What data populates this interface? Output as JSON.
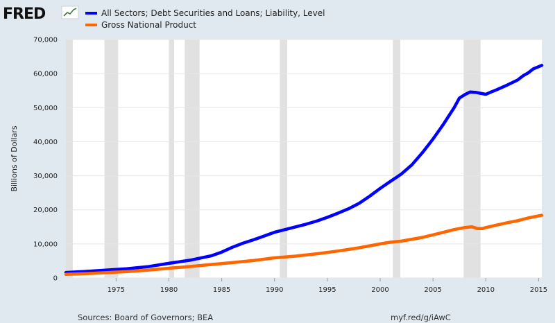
{
  "brand": {
    "logo_text": "FRED"
  },
  "colors": {
    "background": "#e1e9f0",
    "plot_background": "#ffffff",
    "recession_band": "#e1e1e1",
    "grid": "#e6e6e6"
  },
  "footer": {
    "sources": "Sources: Board of Governors; BEA",
    "short_url": "myf.red/g/iAwC"
  },
  "chart_data": {
    "type": "line",
    "title": "",
    "xlabel": "",
    "ylabel": "Billions of Dollars",
    "xlim": [
      1970.25,
      2015.3
    ],
    "ylim": [
      0,
      70000
    ],
    "grid": true,
    "legend_position": "top-left",
    "x_ticks": [
      1975,
      1980,
      1985,
      1990,
      1995,
      2000,
      2005,
      2010,
      2015
    ],
    "x_tick_labels": [
      "1975",
      "1980",
      "1985",
      "1990",
      "1995",
      "2000",
      "2005",
      "2010",
      "2015"
    ],
    "y_ticks": [
      0,
      10000,
      20000,
      30000,
      40000,
      50000,
      60000,
      70000
    ],
    "y_tick_labels": [
      "0",
      "10,000",
      "20,000",
      "30,000",
      "40,000",
      "50,000",
      "60,000",
      "70,000"
    ],
    "recessions": [
      [
        1970.0,
        1970.9
      ],
      [
        1973.9,
        1975.2
      ],
      [
        1980.0,
        1980.5
      ],
      [
        1981.5,
        1982.9
      ],
      [
        1990.5,
        1991.2
      ],
      [
        2001.2,
        2001.9
      ],
      [
        2007.9,
        2009.5
      ]
    ],
    "series": [
      {
        "name": "All Sectors; Debt Securities and Loans; Liability, Level",
        "color": "#0000ff",
        "points": [
          [
            1970.25,
            1600
          ],
          [
            1972,
            1900
          ],
          [
            1974,
            2300
          ],
          [
            1976,
            2700
          ],
          [
            1978,
            3300
          ],
          [
            1980,
            4300
          ],
          [
            1982,
            5200
          ],
          [
            1984,
            6500
          ],
          [
            1985,
            7600
          ],
          [
            1986,
            9000
          ],
          [
            1987,
            10200
          ],
          [
            1988,
            11200
          ],
          [
            1989,
            12300
          ],
          [
            1990,
            13400
          ],
          [
            1991,
            14200
          ],
          [
            1992,
            15000
          ],
          [
            1993,
            15800
          ],
          [
            1994,
            16700
          ],
          [
            1995,
            17800
          ],
          [
            1996,
            19000
          ],
          [
            1997,
            20300
          ],
          [
            1998,
            21900
          ],
          [
            1999,
            24000
          ],
          [
            2000,
            26300
          ],
          [
            2001,
            28400
          ],
          [
            2002,
            30500
          ],
          [
            2003,
            33200
          ],
          [
            2004,
            36800
          ],
          [
            2005,
            40800
          ],
          [
            2006,
            45200
          ],
          [
            2007,
            50000
          ],
          [
            2007.5,
            52800
          ],
          [
            2008,
            53800
          ],
          [
            2008.5,
            54600
          ],
          [
            2009,
            54500
          ],
          [
            2009.5,
            54200
          ],
          [
            2010,
            53900
          ],
          [
            2010.5,
            54600
          ],
          [
            2011,
            55200
          ],
          [
            2012,
            56600
          ],
          [
            2013,
            58100
          ],
          [
            2013.5,
            59300
          ],
          [
            2014,
            60200
          ],
          [
            2014.5,
            61400
          ],
          [
            2015.3,
            62400
          ]
        ]
      },
      {
        "name": "Gross National Product",
        "color": "#ff6600",
        "points": [
          [
            1970.25,
            1050
          ],
          [
            1972,
            1250
          ],
          [
            1974,
            1550
          ],
          [
            1976,
            1850
          ],
          [
            1978,
            2300
          ],
          [
            1980,
            2850
          ],
          [
            1982,
            3350
          ],
          [
            1984,
            3950
          ],
          [
            1986,
            4500
          ],
          [
            1988,
            5100
          ],
          [
            1990,
            5900
          ],
          [
            1992,
            6400
          ],
          [
            1994,
            7100
          ],
          [
            1996,
            7900
          ],
          [
            1998,
            8850
          ],
          [
            2000,
            10000
          ],
          [
            2001,
            10500
          ],
          [
            2002,
            10800
          ],
          [
            2004,
            11900
          ],
          [
            2006,
            13400
          ],
          [
            2007,
            14200
          ],
          [
            2008,
            14800
          ],
          [
            2008.7,
            15000
          ],
          [
            2009.2,
            14500
          ],
          [
            2009.7,
            14500
          ],
          [
            2010,
            14800
          ],
          [
            2011,
            15500
          ],
          [
            2012,
            16200
          ],
          [
            2013,
            16800
          ],
          [
            2014,
            17600
          ],
          [
            2015.3,
            18400
          ]
        ]
      }
    ]
  }
}
